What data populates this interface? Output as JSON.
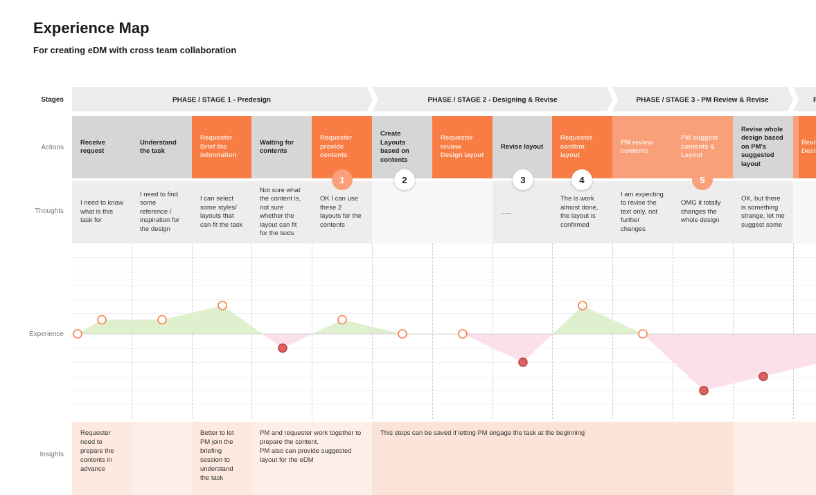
{
  "header": {
    "title": "Experience Map",
    "subtitle": "For creating eDM with cross team collaboration"
  },
  "row_labels": {
    "stages": "Stages",
    "actions": "Actions",
    "thoughts": "Thoughts",
    "experience": "Experience",
    "insights": "Insights"
  },
  "stages": [
    {
      "label": "PHASE / STAGE 1 - Predesign"
    },
    {
      "label": "PHASE / STAGE 2 - Designing & Revise"
    },
    {
      "label": "PHASE / STAGE 3 - PM Review & Revise"
    },
    {
      "label": "P"
    }
  ],
  "actions": [
    {
      "label": "Receive request",
      "style": "gray"
    },
    {
      "label": "Understand the task",
      "style": "gray"
    },
    {
      "label": "Requester Brief the information",
      "style": "orange"
    },
    {
      "label": "Waiting for contents",
      "style": "gray"
    },
    {
      "label": "Requester provide contents",
      "style": "orange"
    },
    {
      "label": "Create Layouts based on contents",
      "style": "gray"
    },
    {
      "label": "Requester review Design layout",
      "style": "orange"
    },
    {
      "label": "Revise layout",
      "style": "gray"
    },
    {
      "label": "Requester confirm layout",
      "style": "orange"
    },
    {
      "label": "PM review contents",
      "style": "lightorange"
    },
    {
      "label": "PM suggest contents & Layout",
      "style": "lightorange"
    },
    {
      "label": "Revise whole design based on PM's suggested layout",
      "style": "gray"
    },
    {
      "label": "Revi Desi",
      "style": "orange"
    }
  ],
  "thoughts": [
    "I need to know what is this task for",
    "I need to find some reference / inspiration for the design",
    "I can select some styles/ layouts that can fit the task",
    "Not sure what the content is, not sure whether the layout can fit for the texts",
    "OK I can use these 2 layouts for the contents",
    "",
    "",
    "......",
    "The is work almost done, the layout is confirmed",
    "I am expecting to revise the text only, not further changes",
    "OMG it totally changes the whole design",
    "OK, but there is something strange, let me suggest some",
    ""
  ],
  "badges": [
    "1",
    "2",
    "3",
    "4",
    "5"
  ],
  "insights": [
    "Requester need to prepare the contents in advance",
    "",
    "Better to let PM join the briefing session to understand the task",
    "PM and requester work together to prepare the content.\nPM also can provide suggested layout for the eDM",
    "This steps can be saved if letting PM engage the task at the beginning",
    ""
  ],
  "colors": {
    "orange": "#f77d45",
    "light_orange": "#f9a07a",
    "positive_area": "#dff0cf",
    "negative_area": "#fbe0ea",
    "negative_point": "#e06060",
    "insight_bg": "#fde9e0"
  },
  "experience": {
    "baseline": 0,
    "points": [
      0,
      1,
      1,
      2,
      -1,
      1,
      0,
      0,
      -2,
      2,
      0,
      -4,
      -3
    ]
  }
}
